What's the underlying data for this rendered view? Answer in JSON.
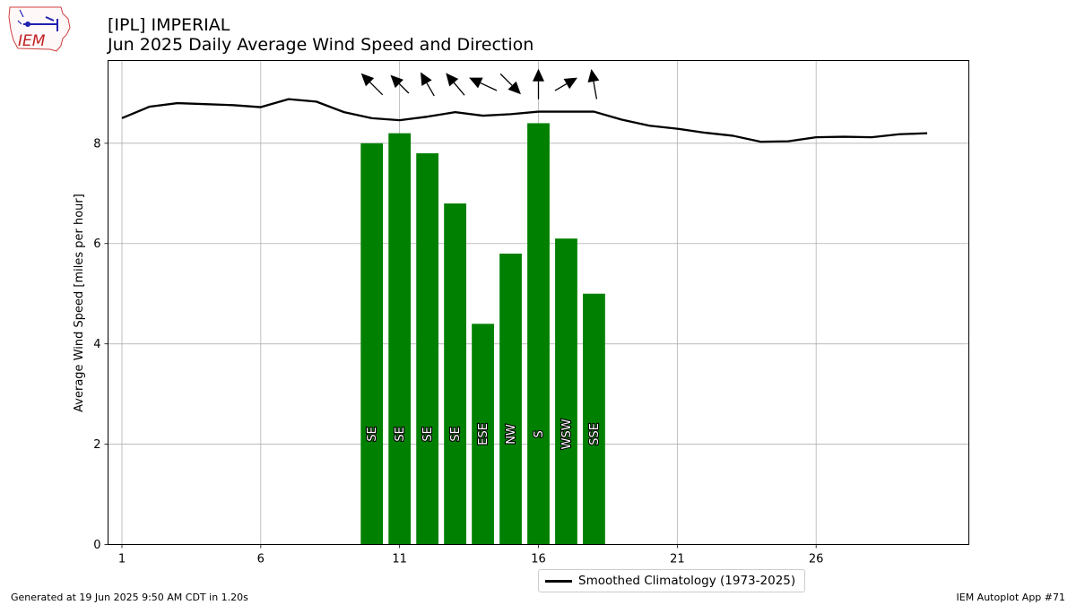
{
  "header": {
    "logo_text": "IEM",
    "title_line1": "[IPL] IMPERIAL",
    "title_line2": "Jun 2025 Daily Average Wind Speed and Direction"
  },
  "footer": {
    "generated": "Generated at 19 Jun 2025 9:50 AM CDT in 1.20s",
    "app": "IEM Autoplot App #71"
  },
  "legend": {
    "label": "Smoothed Climatology (1973-2025)"
  },
  "colors": {
    "bar": "#008000",
    "climo_line": "#000000",
    "grid": "#b0b0b0"
  },
  "chart_data": {
    "type": "bar",
    "title": "[IPL] IMPERIAL Jun 2025 Daily Average Wind Speed and Direction",
    "ylabel": "Average Wind Speed [miles per hour]",
    "xlabel": "",
    "xlim": [
      0.5,
      31.5
    ],
    "ylim": [
      0,
      9.65
    ],
    "xticks": [
      1,
      6,
      11,
      16,
      21,
      26
    ],
    "yticks": [
      0,
      2,
      4,
      6,
      8
    ],
    "grid": true,
    "legend_position": "bottom-center",
    "series": [
      {
        "type": "bar",
        "days": [
          10,
          11,
          12,
          13,
          14,
          15,
          16,
          17,
          18
        ],
        "values": [
          8.0,
          8.2,
          7.8,
          6.8,
          4.4,
          5.8,
          8.4,
          6.1,
          5.0
        ],
        "direction_labels": [
          "SE",
          "SE",
          "SE",
          "SE",
          "ESE",
          "NW",
          "S",
          "WSW",
          "SSE"
        ],
        "direction_deg": [
          135,
          135,
          150,
          140,
          115,
          315,
          180,
          240,
          170
        ],
        "arrow_strength": [
          1.0,
          0.85,
          0.9,
          0.95,
          1.0,
          0.95,
          1.0,
          0.85,
          1.0
        ]
      },
      {
        "type": "line",
        "name": "Smoothed Climatology (1973-2025)",
        "x": [
          1,
          2,
          3,
          4,
          5,
          6,
          7,
          8,
          9,
          10,
          11,
          12,
          13,
          14,
          15,
          16,
          17,
          18,
          19,
          20,
          21,
          22,
          23,
          24,
          25,
          26,
          27,
          28,
          29,
          30
        ],
        "y": [
          8.5,
          8.73,
          8.8,
          8.78,
          8.76,
          8.72,
          8.88,
          8.83,
          8.62,
          8.5,
          8.46,
          8.53,
          8.62,
          8.55,
          8.58,
          8.63,
          8.63,
          8.63,
          8.47,
          8.35,
          8.29,
          8.21,
          8.15,
          8.03,
          8.04,
          8.12,
          8.13,
          8.12,
          8.18,
          8.2
        ]
      }
    ]
  }
}
